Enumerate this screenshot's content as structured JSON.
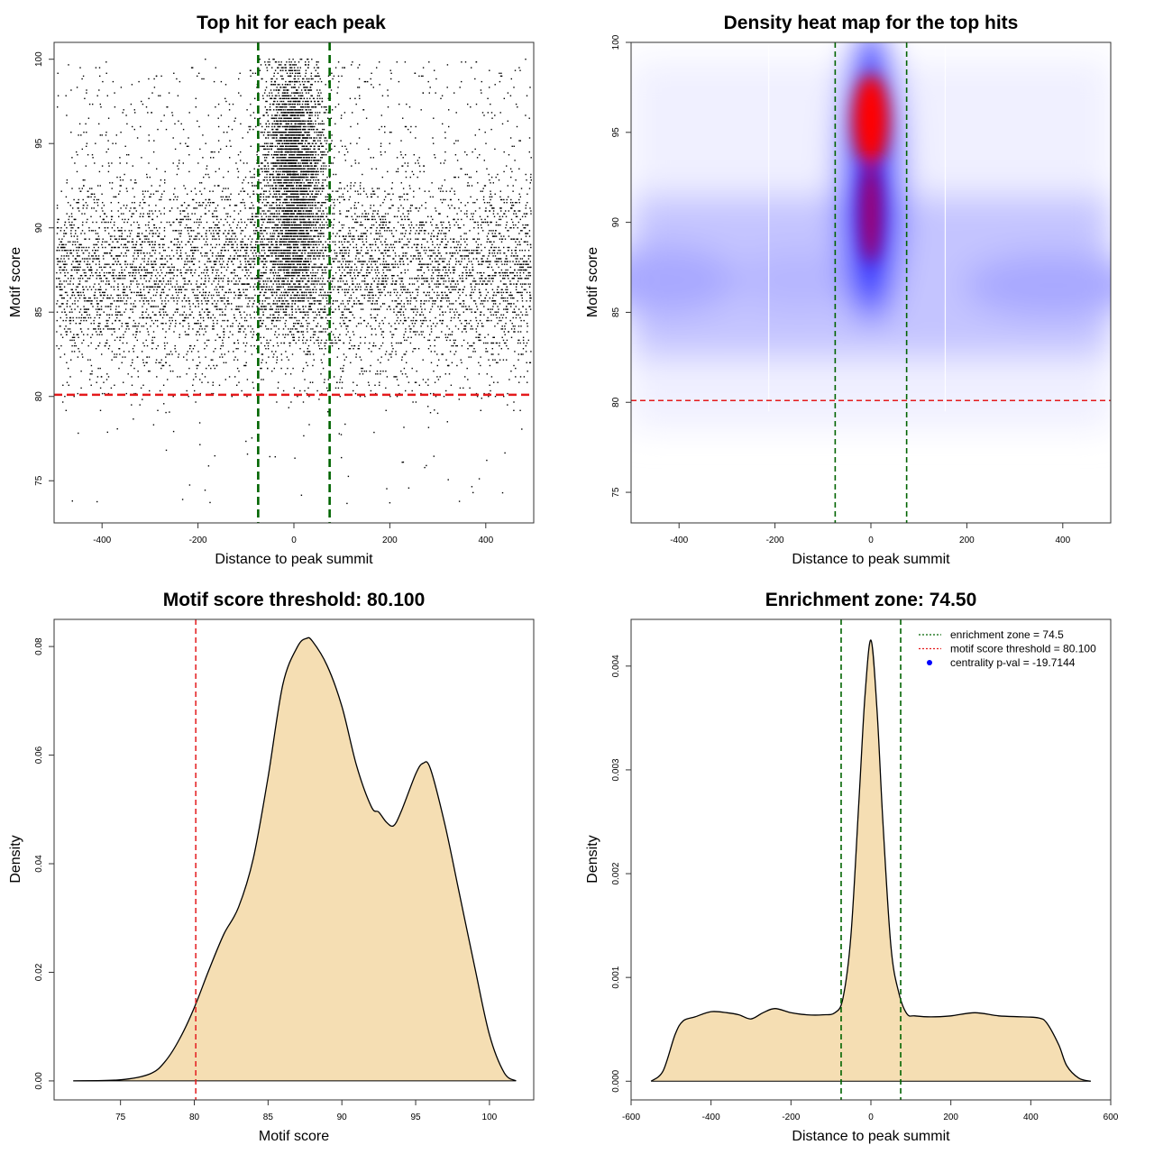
{
  "chart_data": [
    {
      "id": "p1",
      "type": "scatter",
      "title": "Top hit for each peak",
      "xlabel": "Distance to peak summit",
      "ylabel": "Motif score",
      "xlim": [
        -500,
        500
      ],
      "ylim": [
        72.5,
        101
      ],
      "xticks": [
        -400,
        -200,
        0,
        200,
        400
      ],
      "yticks": [
        75,
        80,
        85,
        90,
        95,
        100
      ],
      "x_range_of_points": [
        -495,
        495
      ],
      "y_range_of_points": [
        73.5,
        100
      ],
      "vertical_lines": [
        -74.5,
        74.5
      ],
      "horizontal_lines": [
        80.1
      ],
      "colors": {
        "points": "#000000",
        "enrichment": "#006400",
        "threshold": "#e41a1c"
      }
    },
    {
      "id": "p2",
      "type": "heatmap",
      "title": "Density heat map for the top hits",
      "xlabel": "Distance to peak summit",
      "ylabel": "Motif score",
      "xlim": [
        -500,
        500
      ],
      "ylim": [
        73.3,
        100
      ],
      "xticks": [
        -400,
        -200,
        0,
        200,
        400
      ],
      "yticks": [
        75,
        80,
        85,
        90,
        95,
        100
      ],
      "peak": {
        "x": 0,
        "y": 95.7
      },
      "vertical_lines": [
        -74.5,
        74.5
      ],
      "horizontal_lines": [
        80.1
      ],
      "colors": {
        "low": "#ffffff",
        "mid": "#0000ff",
        "high": "#ff0000",
        "enrichment": "#006400",
        "threshold": "#e41a1c"
      }
    },
    {
      "id": "p3",
      "type": "area",
      "title": "Motif score threshold: 80.100",
      "xlabel": "Motif score",
      "ylabel": "Density",
      "xlim": [
        70.5,
        103
      ],
      "ylim": [
        -0.0035,
        0.085
      ],
      "xticks": [
        75,
        80,
        85,
        90,
        95,
        100
      ],
      "yticks": [
        0.0,
        0.02,
        0.04,
        0.06,
        0.08
      ],
      "ytick_labels": [
        "0.00",
        "0.02",
        "0.04",
        "0.06",
        "0.08"
      ],
      "x": [
        71.8,
        75,
        77,
        78,
        79,
        80,
        81,
        82,
        83,
        84,
        85,
        86,
        87,
        87.6,
        88,
        89,
        90,
        91,
        92,
        92.5,
        93,
        93.5,
        94,
        95,
        95.5,
        96,
        97,
        98,
        99,
        100,
        101,
        101.8
      ],
      "y": [
        0.0,
        0.0002,
        0.0013,
        0.0035,
        0.0077,
        0.0135,
        0.0205,
        0.027,
        0.032,
        0.041,
        0.056,
        0.073,
        0.08,
        0.0815,
        0.081,
        0.0765,
        0.069,
        0.058,
        0.0505,
        0.0495,
        0.0477,
        0.047,
        0.0495,
        0.0565,
        0.0585,
        0.0575,
        0.047,
        0.034,
        0.021,
        0.0085,
        0.0015,
        0.0
      ],
      "vertical_lines": [
        80.1
      ],
      "colors": {
        "fill": "#f5deb3",
        "stroke": "#000000",
        "threshold": "#e41a1c"
      }
    },
    {
      "id": "p4",
      "type": "area",
      "title": "Enrichment zone: 74.50",
      "xlabel": "Distance to peak summit",
      "ylabel": "Density",
      "xlim": [
        -600,
        600
      ],
      "ylim": [
        -0.00018,
        0.00445
      ],
      "xticks": [
        -600,
        -400,
        -200,
        0,
        200,
        400,
        600
      ],
      "yticks": [
        0.0,
        0.001,
        0.002,
        0.003,
        0.004
      ],
      "ytick_labels": [
        "0.000",
        "0.001",
        "0.002",
        "0.003",
        "0.004"
      ],
      "x": [
        -550,
        -520,
        -490,
        -470,
        -440,
        -400,
        -360,
        -330,
        -300,
        -270,
        -240,
        -200,
        -160,
        -120,
        -90,
        -70,
        -50,
        -30,
        -15,
        0,
        15,
        30,
        50,
        70,
        90,
        110,
        150,
        200,
        260,
        320,
        380,
        420,
        440,
        470,
        490,
        520,
        550
      ],
      "y": [
        0.0,
        0.0001,
        0.00045,
        0.00058,
        0.00062,
        0.00067,
        0.00066,
        0.00064,
        0.0006,
        0.00066,
        0.0007,
        0.00066,
        0.00064,
        0.00064,
        0.00066,
        0.0008,
        0.0014,
        0.0027,
        0.0037,
        0.00425,
        0.0036,
        0.0025,
        0.0013,
        0.00085,
        0.00065,
        0.00063,
        0.00062,
        0.00063,
        0.00066,
        0.00063,
        0.00062,
        0.00061,
        0.00056,
        0.00035,
        0.00015,
        3e-05,
        0.0
      ],
      "vertical_lines": [
        -74.5,
        74.5
      ],
      "legend": [
        {
          "label": "enrichment zone = 74.5",
          "kind": "dotted-line",
          "color": "#006400"
        },
        {
          "label": "motif score threshold = 80.100",
          "kind": "dotted-line",
          "color": "#e41a1c"
        },
        {
          "label": "centrality p-val = -19.7144",
          "kind": "point",
          "color": "#0000ff"
        }
      ],
      "legend_position": "top-right",
      "colors": {
        "fill": "#f5deb3",
        "stroke": "#000000",
        "enrichment": "#006400"
      }
    }
  ]
}
